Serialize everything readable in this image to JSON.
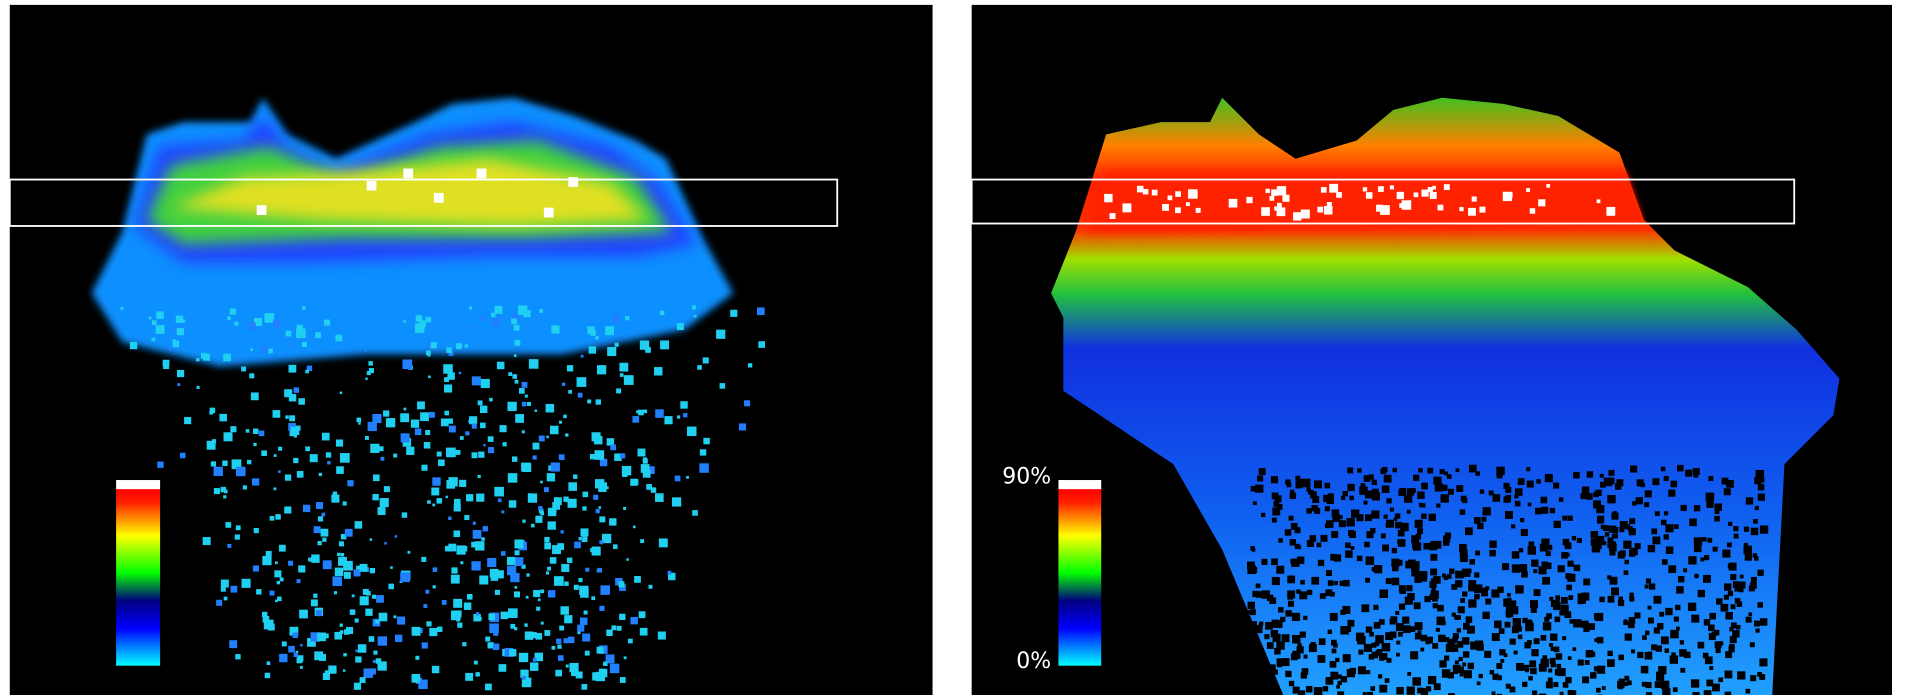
{
  "right_panel": {
    "colorbar": {
      "top_label": "90%",
      "bottom_label": "0%"
    }
  }
}
